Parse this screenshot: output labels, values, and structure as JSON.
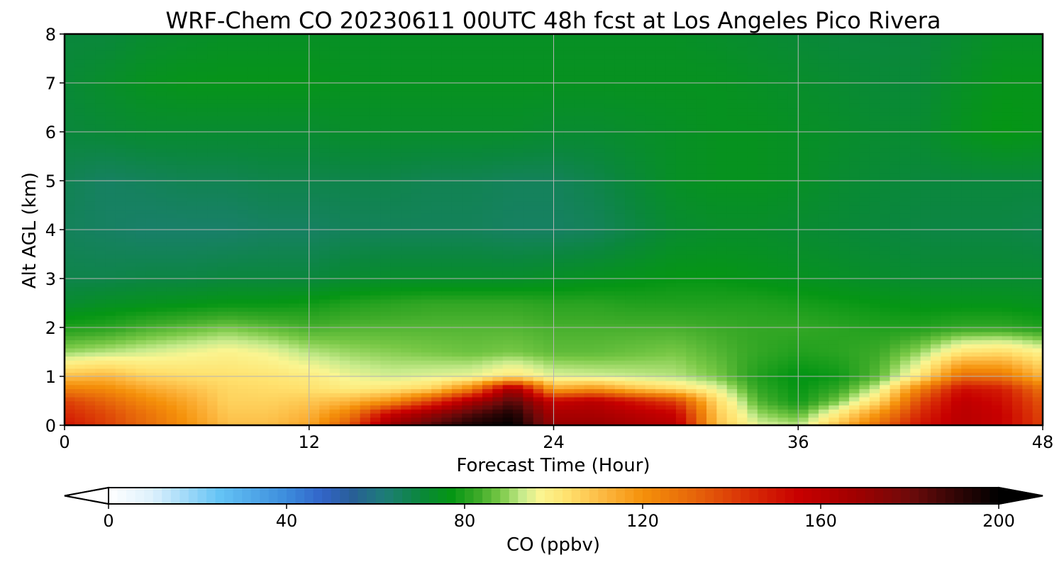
{
  "chart_data": {
    "type": "heatmap",
    "title": "WRF-Chem CO  20230611 00UTC 48h fcst at Los Angeles Pico Rivera",
    "xlabel": "Forecast Time (Hour)",
    "ylabel": "Alt AGL (km)",
    "xlim": [
      0,
      48
    ],
    "ylim": [
      0,
      8
    ],
    "x_ticks": [
      0,
      12,
      24,
      36,
      48
    ],
    "y_ticks": [
      0,
      1,
      2,
      3,
      4,
      5,
      6,
      7,
      8
    ],
    "grid": true,
    "colorbar": {
      "label": "CO  (ppbv)",
      "min": 0,
      "max": 200,
      "ticks": [
        0,
        40,
        80,
        120,
        160,
        200
      ],
      "extend": "both",
      "orientation": "horizontal",
      "placement": "bottom"
    },
    "x": [
      0,
      2,
      4,
      6,
      8,
      10,
      12,
      14,
      16,
      18,
      20,
      22,
      24,
      26,
      28,
      30,
      32,
      34,
      36,
      38,
      40,
      42,
      44,
      46,
      48
    ],
    "y": [
      0,
      0.25,
      0.5,
      0.75,
      1,
      1.5,
      2,
      2.5,
      3,
      4,
      5,
      6,
      7,
      8
    ],
    "z": [
      [
        150,
        140,
        130,
        120,
        110,
        110,
        115,
        135,
        170,
        185,
        195,
        200,
        170,
        170,
        165,
        160,
        110,
        95,
        92,
        110,
        130,
        150,
        160,
        155,
        140
      ],
      [
        145,
        138,
        128,
        118,
        108,
        108,
        112,
        125,
        155,
        170,
        185,
        195,
        165,
        165,
        160,
        155,
        108,
        90,
        85,
        100,
        120,
        145,
        160,
        155,
        138
      ],
      [
        140,
        132,
        122,
        115,
        106,
        106,
        108,
        112,
        120,
        140,
        165,
        185,
        155,
        160,
        150,
        140,
        104,
        85,
        78,
        88,
        105,
        138,
        158,
        152,
        135
      ],
      [
        125,
        122,
        115,
        110,
        105,
        104,
        103,
        100,
        102,
        106,
        125,
        170,
        115,
        120,
        110,
        104,
        96,
        82,
        77,
        82,
        95,
        125,
        152,
        148,
        128
      ],
      [
        110,
        112,
        106,
        104,
        103,
        102,
        100,
        96,
        94,
        95,
        96,
        102,
        95,
        94,
        93,
        92,
        88,
        80,
        76,
        78,
        86,
        102,
        130,
        128,
        112
      ],
      [
        90,
        92,
        94,
        96,
        98,
        96,
        92,
        90,
        89,
        88,
        87,
        88,
        86,
        86,
        87,
        88,
        85,
        82,
        80,
        81,
        83,
        90,
        102,
        104,
        98
      ],
      [
        80,
        81,
        84,
        86,
        88,
        86,
        84,
        85,
        85,
        85,
        85,
        85,
        84,
        84,
        84,
        84,
        83,
        82,
        82,
        81,
        80,
        80,
        82,
        82,
        80
      ],
      [
        72,
        74,
        75,
        76,
        77,
        77,
        78,
        80,
        81,
        82,
        82,
        82,
        81,
        81,
        80,
        80,
        80,
        80,
        79,
        78,
        77,
        76,
        76,
        76,
        75
      ],
      [
        68,
        68,
        69,
        69,
        70,
        70,
        70,
        72,
        73,
        73,
        73,
        73,
        74,
        75,
        76,
        77,
        77,
        76,
        75,
        74,
        73,
        72,
        72,
        72,
        72
      ],
      [
        66,
        65,
        64,
        64,
        64,
        65,
        65,
        66,
        66,
        66,
        66,
        65,
        65,
        66,
        69,
        72,
        73,
        73,
        72,
        71,
        70,
        69,
        69,
        69,
        68
      ],
      [
        67,
        65,
        66,
        67,
        67,
        68,
        68,
        68,
        68,
        67,
        67,
        66,
        66,
        68,
        71,
        74,
        75,
        75,
        74,
        72,
        71,
        70,
        70,
        70,
        70
      ],
      [
        70,
        71,
        72,
        72,
        72,
        72,
        72,
        73,
        73,
        73,
        73,
        73,
        72,
        72,
        73,
        74,
        75,
        75,
        74,
        73,
        72,
        72,
        75,
        77,
        76
      ],
      [
        71,
        73,
        75,
        76,
        76,
        76,
        76,
        75,
        75,
        75,
        75,
        75,
        75,
        75,
        75,
        75,
        75,
        74,
        73,
        72,
        71,
        71,
        74,
        76,
        76
      ],
      [
        70,
        70,
        72,
        73,
        74,
        74,
        74,
        74,
        74,
        74,
        74,
        74,
        74,
        74,
        74,
        74,
        73,
        72,
        71,
        70,
        70,
        70,
        72,
        74,
        74
      ]
    ]
  }
}
